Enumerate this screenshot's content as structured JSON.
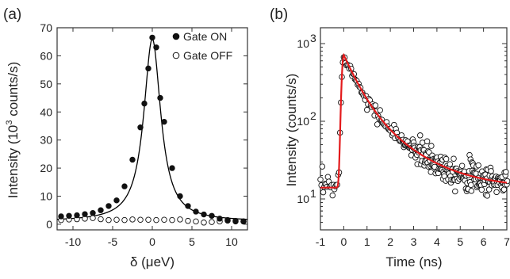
{
  "chart_data": [
    {
      "type": "scatter",
      "panel_label": "(a)",
      "xlabel": "δ (μeV)",
      "ylabel": "Intensity (10",
      "ylabel_sup": "3",
      "ylabel_rest": " counts/s)",
      "xlim": [
        -12,
        12
      ],
      "ylim": [
        -2,
        70
      ],
      "xticks": [
        -10,
        -5,
        0,
        5,
        10
      ],
      "xtick_labels": [
        "-10",
        "-5",
        "0",
        "5",
        "10"
      ],
      "yticks": [
        0,
        10,
        20,
        30,
        40,
        50,
        60,
        70
      ],
      "ytick_labels": [
        "0",
        "10",
        "20",
        "30",
        "40",
        "50",
        "60",
        "70"
      ],
      "legend_position": "top-right",
      "series": [
        {
          "name": "Gate ON",
          "marker": "filled-circle",
          "x": [
            -11.5,
            -10.5,
            -9.5,
            -8.5,
            -7.5,
            -6.5,
            -5.5,
            -4.5,
            -3.5,
            -2.5,
            -1.5,
            -1.0,
            -0.5,
            0.0,
            0.5,
            1.0,
            1.5,
            2.5,
            3.5,
            4.5,
            5.5,
            6.5,
            7.5,
            8.5,
            9.5,
            10.5,
            11.5
          ],
          "y": [
            2.8,
            3.0,
            3.2,
            3.6,
            4.0,
            5.0,
            6.5,
            8.5,
            13.5,
            23.0,
            34.5,
            43.0,
            55.5,
            66.5,
            63.0,
            45.0,
            36.5,
            20.0,
            10.0,
            6.5,
            4.5,
            3.5,
            3.0,
            2.0,
            1.5,
            1.0,
            1.0
          ]
        },
        {
          "name": "Gate OFF",
          "marker": "open-circle",
          "x": [
            -11.5,
            -10.5,
            -9.5,
            -8.5,
            -7.5,
            -6.5,
            -5.5,
            -4.5,
            -3.5,
            -2.5,
            -1.5,
            -0.5,
            0.5,
            1.5,
            2.5,
            3.5,
            4.5,
            5.5,
            6.5,
            7.5,
            8.5,
            9.5,
            10.5,
            11.5
          ],
          "y": [
            1.5,
            1.7,
            1.8,
            2.0,
            2.2,
            1.8,
            1.5,
            1.6,
            1.5,
            1.7,
            1.6,
            1.6,
            1.5,
            1.6,
            1.5,
            1.7,
            1.2,
            1.0,
            0.6,
            0.8,
            1.0,
            1.3,
            1.2,
            1.0
          ]
        },
        {
          "name": "",
          "style": "line",
          "color": "#000000",
          "model": "lorentzian",
          "center": 0,
          "fwhm": 2.6,
          "amplitude": 65,
          "offset": 1
        }
      ]
    },
    {
      "type": "scatter",
      "panel_label": "(b)",
      "xlabel": "Time (ns)",
      "ylabel": "Intensity (counts/s)",
      "xlim": [
        -1,
        7
      ],
      "ylim": [
        4,
        1600
      ],
      "yscale": "log",
      "xticks": [
        -1,
        0,
        1,
        2,
        3,
        4,
        5,
        6,
        7
      ],
      "xtick_labels": [
        "-1",
        "0",
        "1",
        "2",
        "3",
        "4",
        "5",
        "6",
        "7"
      ],
      "yticks": [
        10,
        100,
        1000
      ],
      "ytick_labels": [
        "10",
        "10",
        "10"
      ],
      "ytick_sups": [
        "1",
        "2",
        "3"
      ],
      "series": [
        {
          "name": "",
          "marker": "open-circle",
          "model": "noisy-decay",
          "t_start": -1,
          "t_end": 7,
          "t_step": 0.04,
          "t0": 0,
          "rise": 0.07,
          "peak": 700,
          "background": 14,
          "decay_fast": 0.55,
          "decay_slow": 1.6
        },
        {
          "name": "",
          "style": "line",
          "color": "#e31a1c",
          "model": "fit",
          "t0": 0,
          "rise": 0.07,
          "peak": 700,
          "background": 14,
          "decay_fast": 0.55,
          "decay_slow": 1.6
        }
      ]
    }
  ]
}
